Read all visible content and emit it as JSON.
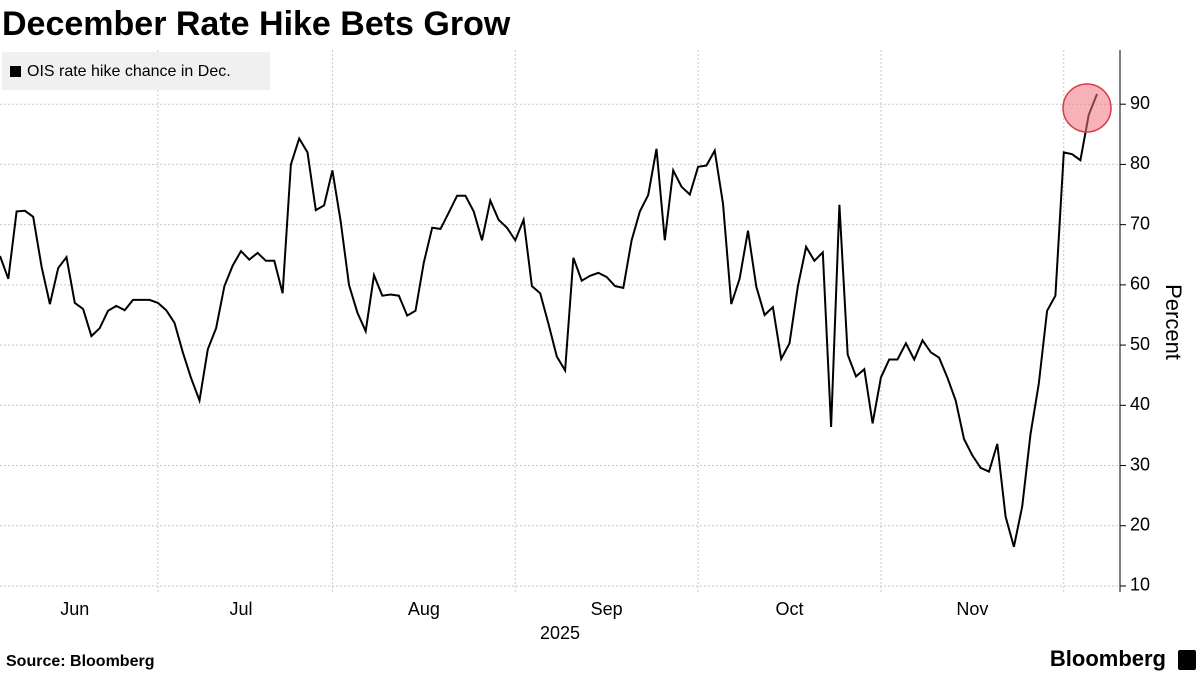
{
  "chart_data": {
    "type": "line",
    "title": "December Rate Hike Bets Grow",
    "y_label": "Percent",
    "x_label": "2025",
    "source": "Source: Bloomberg",
    "logo": "Bloomberg",
    "legend": "top-left",
    "grid": true,
    "highlight_color": "#f2737f",
    "ylim": [
      9,
      99
    ],
    "yticks": [
      10,
      20,
      30,
      40,
      50,
      60,
      70,
      80,
      90
    ],
    "categories": [
      null,
      null,
      null,
      null,
      null,
      null,
      null,
      null,
      null,
      "Jun",
      null,
      null,
      null,
      null,
      null,
      null,
      null,
      null,
      null,
      null,
      null,
      null,
      null,
      null,
      null,
      null,
      null,
      null,
      null,
      "Jul",
      null,
      null,
      null,
      null,
      null,
      null,
      null,
      null,
      null,
      null,
      null,
      null,
      null,
      null,
      null,
      null,
      null,
      null,
      null,
      null,
      null,
      "Aug",
      null,
      null,
      null,
      null,
      null,
      null,
      null,
      null,
      null,
      null,
      null,
      null,
      null,
      null,
      null,
      null,
      null,
      null,
      null,
      null,
      null,
      "Sep",
      null,
      null,
      null,
      null,
      null,
      null,
      null,
      null,
      null,
      null,
      null,
      null,
      null,
      null,
      null,
      null,
      null,
      null,
      null,
      null,
      null,
      "Oct",
      null,
      null,
      null,
      null,
      null,
      null,
      null,
      null,
      null,
      null,
      null,
      null,
      null,
      null,
      null,
      null,
      null,
      null,
      null,
      null,
      null,
      "Nov",
      null,
      null,
      null,
      null,
      null,
      null,
      null,
      null,
      null,
      null,
      null,
      null,
      null,
      null,
      null
    ],
    "series": [
      {
        "name": "OIS rate hike chance in Dec.",
        "color": "#000000",
        "values": [
          64.8,
          61,
          72.2,
          72.3,
          71.3,
          63,
          56.8,
          62.8,
          64.6,
          57,
          56,
          51.5,
          52.8,
          55.7,
          56.5,
          55.8,
          57.5,
          57.5,
          57.5,
          57,
          55.8,
          53.7,
          48.8,
          44.5,
          40.8,
          49.3,
          52.8,
          59.8,
          63.2,
          65.6,
          64.2,
          65.3,
          64,
          64,
          58.6,
          80,
          84.3,
          82,
          72.4,
          73.2,
          79,
          70.5,
          60,
          55.4,
          52.3,
          61.6,
          58.2,
          58.4,
          58.2,
          54.9,
          55.7,
          63.7,
          69.5,
          69.3,
          72,
          74.8,
          74.8,
          72.2,
          67.4,
          74,
          70.8,
          69.5,
          67.4,
          70.8,
          59.8,
          58.6,
          53.5,
          48.1,
          45.8,
          64.5,
          60.7,
          61.5,
          62,
          61.3,
          59.8,
          59.5,
          67.4,
          72.2,
          74.9,
          82.6,
          67.4,
          79,
          76.3,
          75,
          79.6,
          79.8,
          82.3,
          73.5,
          56.8,
          61,
          69,
          59.7,
          55,
          56.3,
          47.7,
          50.3,
          59.7,
          66.3,
          64,
          65.4,
          36.4,
          73.3,
          48.4,
          44.8,
          46,
          37,
          44.6,
          47.6,
          47.6,
          50.3,
          47.6,
          50.8,
          48.8,
          47.9,
          44.6,
          40.8,
          34.4,
          31.7,
          29.6,
          29,
          33.6,
          21.5,
          16.5,
          23.2,
          35.2,
          43.6,
          55.7,
          58.2,
          82,
          81.7,
          80.7,
          88.2,
          91.7
        ]
      }
    ]
  }
}
